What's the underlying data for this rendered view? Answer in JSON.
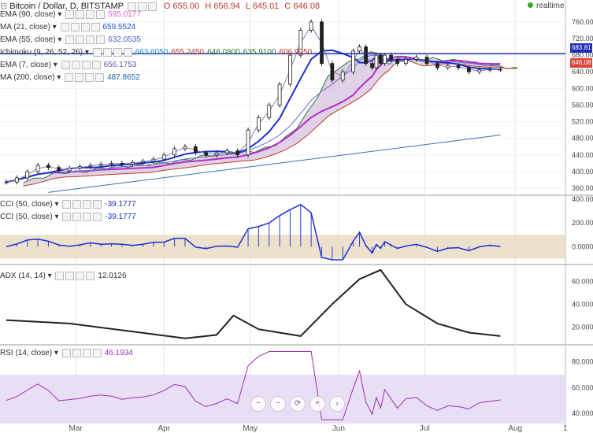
{
  "header": {
    "title": "Bitcoin / Dollar, D, BITSTAMP",
    "ohlc": {
      "O": "655.00",
      "H": "656.94",
      "L": "645.01",
      "C": "646.08"
    },
    "realtime": "realtime"
  },
  "legend_main": [
    {
      "label": "EMA (90, close)",
      "value": "595.0177",
      "color": "#e05bd3"
    },
    {
      "label": "MA (21, close)",
      "value": "659.5524",
      "color": "#1f4fd6"
    },
    {
      "label": "EMA (55, close)",
      "value": "632.0535",
      "color": "#5561c7"
    },
    {
      "label": "Ichimoku (9, 26, 52, 26)",
      "values": [
        "663.6050",
        "655.2450",
        "646.0800",
        "635.9100",
        "606.9250"
      ],
      "colors": [
        "#1f8fd6",
        "#c0392b",
        "#2e7d32",
        "#2e7d32",
        "#c0392b"
      ]
    },
    {
      "label": "EMA (7, close)",
      "value": "656.1753",
      "color": "#5a5aa8"
    },
    {
      "label": "MA (200, close)",
      "value": "487.8652",
      "color": "#1f5fa8"
    }
  ],
  "legend_cci": [
    {
      "label": "CCI (50, close)",
      "value": "-39.1777"
    },
    {
      "label": "CCI (50, close)",
      "value": "-39.1777"
    }
  ],
  "legend_adx": {
    "label": "ADX (14, 14)",
    "value": "12.0126"
  },
  "legend_rsi": {
    "label": "RSI (14, close)",
    "value": "46.1934"
  },
  "price_tags": {
    "level": "683.81",
    "last": "646.08"
  },
  "nav_buttons": [
    "−",
    "−",
    "⟳",
    "+",
    "›"
  ],
  "chart_data": {
    "type": "line",
    "title": "Bitcoin / Dollar, D, BITSTAMP",
    "x_labels": [
      "Mar",
      "Apr",
      "May",
      "Jun",
      "Jul",
      "Aug"
    ],
    "price_axis": {
      "ticks": [
        360,
        400,
        440,
        480,
        520,
        560,
        600,
        640,
        680,
        720,
        760
      ],
      "ylim": [
        345,
        790
      ]
    },
    "price": {
      "days": [
        0,
        5,
        10,
        15,
        20,
        25,
        30,
        35,
        40,
        45,
        50,
        55,
        60,
        65,
        70,
        75,
        80,
        85,
        90,
        95,
        100,
        105,
        110,
        115,
        120,
        125,
        130,
        135,
        140,
        145,
        150,
        155,
        160,
        165,
        168,
        171,
        174,
        176,
        178,
        180,
        183,
        186,
        190,
        195,
        200,
        205,
        210,
        215,
        220,
        225,
        230,
        235
      ],
      "close": [
        375,
        385,
        400,
        415,
        410,
        402,
        408,
        412,
        415,
        418,
        420,
        418,
        422,
        425,
        430,
        440,
        455,
        460,
        445,
        440,
        445,
        450,
        440,
        500,
        530,
        560,
        610,
        680,
        740,
        760,
        660,
        620,
        640,
        690,
        700,
        660,
        650,
        680,
        660,
        680,
        670,
        660,
        670,
        675,
        660,
        650,
        655,
        650,
        640,
        645,
        646,
        646
      ]
    },
    "horizontal_level": 683.81,
    "ma200": {
      "start": 350,
      "end": 487.87
    },
    "cci": {
      "ticks": [
        0,
        200,
        400
      ],
      "ylim": [
        -130,
        420
      ],
      "band": [
        -100,
        100
      ],
      "last": -39.1777
    },
    "adx": {
      "ticks": [
        20,
        40,
        60
      ],
      "ylim": [
        5,
        72
      ],
      "last": 12.0126
    },
    "rsi": {
      "ticks": [
        40,
        60,
        80
      ],
      "ylim": [
        32,
        92
      ],
      "band": [
        30,
        70
      ],
      "last": 46.1934
    }
  }
}
